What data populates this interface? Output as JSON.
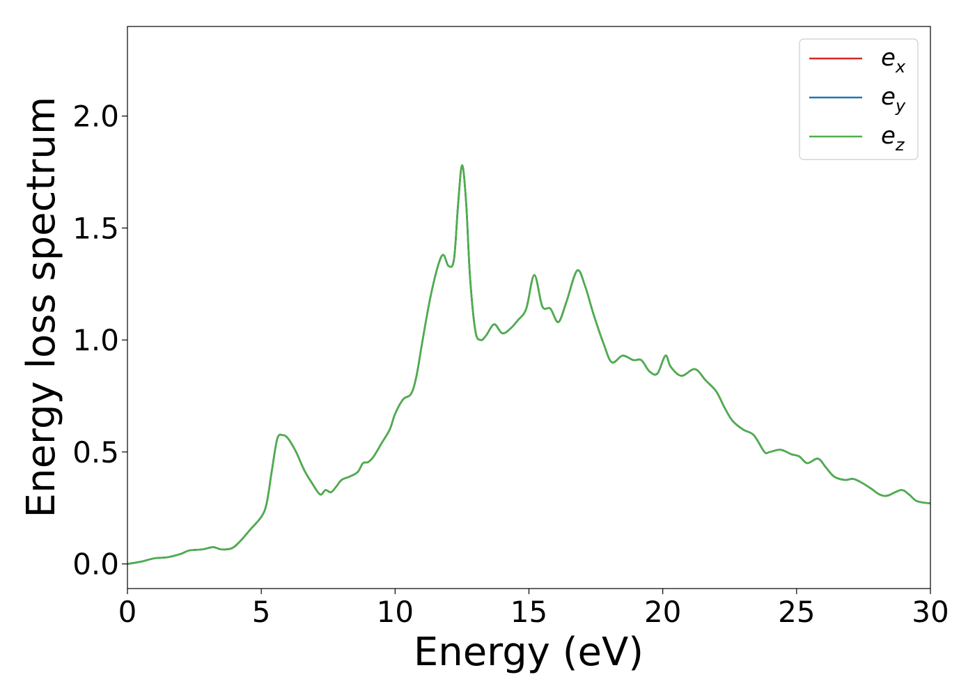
{
  "chart_data": {
    "type": "line",
    "title": "",
    "xlabel": "Energy (eV)",
    "ylabel": "Energy loss spectrum",
    "xlim": [
      0,
      30
    ],
    "ylim": [
      -0.11,
      2.4
    ],
    "x_ticks": [
      0,
      5,
      10,
      15,
      20,
      25,
      30
    ],
    "x_tick_labels": [
      "0",
      "5",
      "10",
      "15",
      "20",
      "25",
      "30"
    ],
    "y_ticks": [
      0.0,
      0.5,
      1.0,
      1.5,
      2.0
    ],
    "y_tick_labels": [
      "0.0",
      "0.5",
      "1.0",
      "1.5",
      "2.0"
    ],
    "grid": false,
    "legend_position": "top-right",
    "series": [
      {
        "name": "e_x",
        "label_base": "e",
        "label_sub": "x",
        "color": "#d62728",
        "x": [
          0,
          0.5,
          1,
          1.5,
          2,
          2.3,
          2.8,
          3.2,
          3.5,
          3.9,
          4.2,
          4.6,
          5.0,
          5.2,
          5.4,
          5.6,
          5.8,
          6.0,
          6.3,
          6.6,
          6.9,
          7.2,
          7.4,
          7.6,
          7.8,
          8.0,
          8.3,
          8.6,
          8.8,
          9.0,
          9.2,
          9.5,
          9.8,
          10.0,
          10.3,
          10.6,
          10.8,
          11.0,
          11.3,
          11.6,
          11.8,
          12.0,
          12.2,
          12.35,
          12.5,
          12.65,
          12.8,
          13.0,
          13.2,
          13.4,
          13.7,
          14.0,
          14.3,
          14.6,
          14.9,
          15.2,
          15.5,
          15.8,
          16.1,
          16.4,
          16.8,
          17.1,
          17.4,
          17.8,
          18.1,
          18.5,
          18.9,
          19.2,
          19.5,
          19.8,
          20.1,
          20.3,
          20.7,
          21.2,
          21.6,
          22.0,
          22.3,
          22.6,
          23.0,
          23.4,
          23.8,
          24.0,
          24.4,
          24.8,
          25.1,
          25.4,
          25.8,
          26.1,
          26.4,
          26.8,
          27.1,
          27.4,
          27.8,
          28.1,
          28.4,
          28.9,
          29.2,
          29.5,
          30.0
        ],
        "y": [
          0.0,
          0.01,
          0.025,
          0.03,
          0.045,
          0.06,
          0.065,
          0.075,
          0.065,
          0.07,
          0.1,
          0.155,
          0.21,
          0.27,
          0.42,
          0.56,
          0.575,
          0.56,
          0.5,
          0.42,
          0.36,
          0.31,
          0.33,
          0.32,
          0.345,
          0.375,
          0.39,
          0.41,
          0.45,
          0.455,
          0.48,
          0.54,
          0.6,
          0.67,
          0.735,
          0.76,
          0.84,
          0.98,
          1.18,
          1.33,
          1.38,
          1.33,
          1.36,
          1.6,
          1.78,
          1.62,
          1.28,
          1.04,
          1.0,
          1.02,
          1.07,
          1.03,
          1.05,
          1.09,
          1.14,
          1.29,
          1.15,
          1.14,
          1.08,
          1.17,
          1.31,
          1.24,
          1.12,
          0.98,
          0.9,
          0.93,
          0.91,
          0.91,
          0.86,
          0.85,
          0.93,
          0.88,
          0.84,
          0.87,
          0.82,
          0.77,
          0.7,
          0.64,
          0.6,
          0.575,
          0.5,
          0.5,
          0.51,
          0.49,
          0.48,
          0.45,
          0.47,
          0.43,
          0.39,
          0.375,
          0.38,
          0.365,
          0.335,
          0.31,
          0.305,
          0.33,
          0.31,
          0.28,
          0.27
        ]
      },
      {
        "name": "e_y",
        "label_base": "e",
        "label_sub": "y",
        "color": "#1f77b4",
        "same_as": "e_x"
      },
      {
        "name": "e_z",
        "label_base": "e",
        "label_sub": "z",
        "color": "#4daf4a",
        "same_as": "e_x"
      }
    ]
  }
}
